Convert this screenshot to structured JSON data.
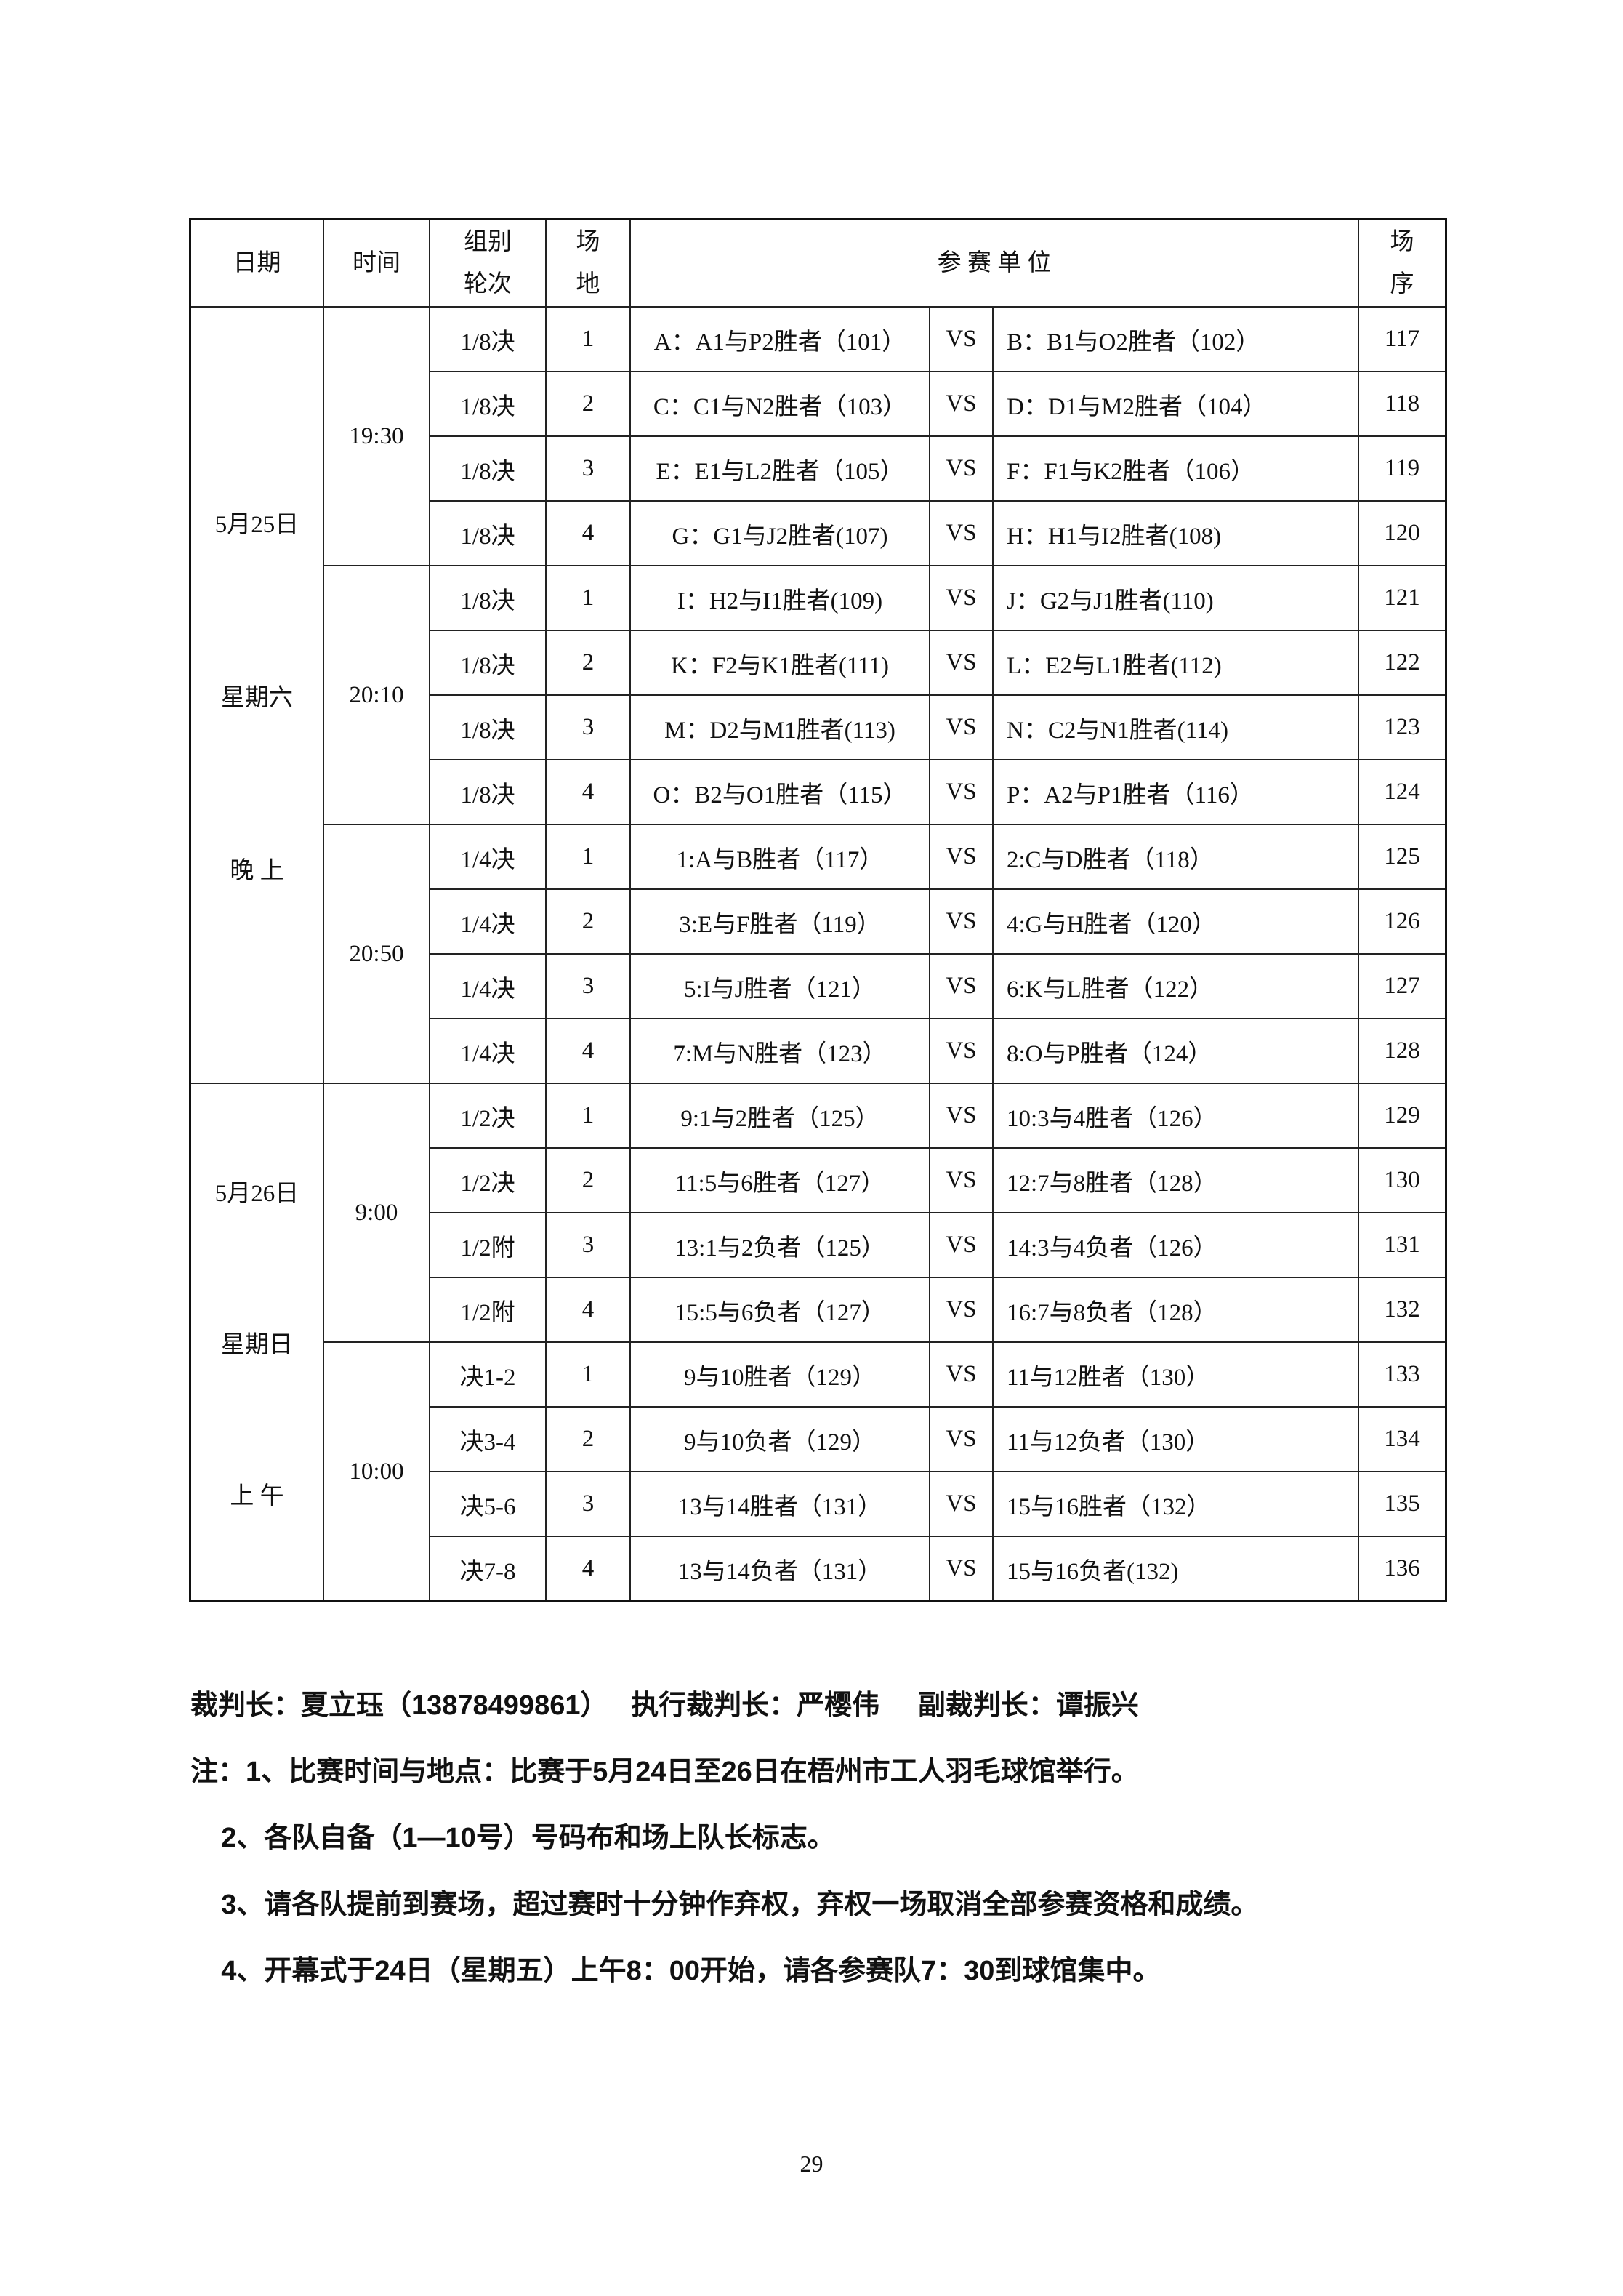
{
  "header": {
    "date": "日期",
    "time": "时间",
    "group_l1": "组别",
    "group_l2": "轮次",
    "court_l1": "场",
    "court_l2": "地",
    "teams": "参 赛 单 位",
    "order_l1": "场",
    "order_l2": "序"
  },
  "dates": [
    {
      "lines": [
        "5月25日",
        "星期六",
        "晚 上"
      ]
    },
    {
      "lines": [
        "5月26日",
        "星期日",
        "上 午"
      ]
    }
  ],
  "times": [
    "19:30",
    "20:10",
    "20:50",
    "9:00",
    "10:00"
  ],
  "rows": [
    {
      "round": "1/8决",
      "court": "1",
      "a": "A：A1与P2胜者（101）",
      "vs": "VS",
      "b": "B：B1与O2胜者（102）",
      "no": "117"
    },
    {
      "round": "1/8决",
      "court": "2",
      "a": "C：C1与N2胜者（103）",
      "vs": "VS",
      "b": "D：D1与M2胜者（104）",
      "no": "118"
    },
    {
      "round": "1/8决",
      "court": "3",
      "a": "E：E1与L2胜者（105）",
      "vs": "VS",
      "b": "F：F1与K2胜者（106）",
      "no": "119"
    },
    {
      "round": "1/8决",
      "court": "4",
      "a": "G：G1与J2胜者(107)",
      "vs": "VS",
      "b": "H：H1与I2胜者(108)",
      "no": "120"
    },
    {
      "round": "1/8决",
      "court": "1",
      "a": "I：H2与I1胜者(109)",
      "vs": "VS",
      "b": "J：G2与J1胜者(110)",
      "no": "121"
    },
    {
      "round": "1/8决",
      "court": "2",
      "a": "K：F2与K1胜者(111)",
      "vs": "VS",
      "b": "L：E2与L1胜者(112)",
      "no": "122"
    },
    {
      "round": "1/8决",
      "court": "3",
      "a": "M：D2与M1胜者(113)",
      "vs": "VS",
      "b": "N：C2与N1胜者(114)",
      "no": "123"
    },
    {
      "round": "1/8决",
      "court": "4",
      "a": "O：B2与O1胜者（115）",
      "vs": "VS",
      "b": "P：A2与P1胜者（116）",
      "no": "124"
    },
    {
      "round": "1/4决",
      "court": "1",
      "a": "1:A与B胜者（117）",
      "vs": "VS",
      "b": "2:C与D胜者（118）",
      "no": "125"
    },
    {
      "round": "1/4决",
      "court": "2",
      "a": "3:E与F胜者（119）",
      "vs": "VS",
      "b": "4:G与H胜者（120）",
      "no": "126"
    },
    {
      "round": "1/4决",
      "court": "3",
      "a": "5:I与J胜者（121）",
      "vs": "VS",
      "b": "6:K与L胜者（122）",
      "no": "127"
    },
    {
      "round": "1/4决",
      "court": "4",
      "a": "7:M与N胜者（123）",
      "vs": "VS",
      "b": "8:O与P胜者（124）",
      "no": "128"
    },
    {
      "round": "1/2决",
      "court": "1",
      "a": "9:1与2胜者（125）",
      "vs": "VS",
      "b": "10:3与4胜者（126）",
      "no": "129"
    },
    {
      "round": "1/2决",
      "court": "2",
      "a": "11:5与6胜者（127）",
      "vs": "VS",
      "b": "12:7与8胜者（128）",
      "no": "130"
    },
    {
      "round": "1/2附",
      "court": "3",
      "a": "13:1与2负者（125）",
      "vs": "VS",
      "b": "14:3与4负者（126）",
      "no": "131"
    },
    {
      "round": "1/2附",
      "court": "4",
      "a": "15:5与6负者（127）",
      "vs": "VS",
      "b": "16:7与8负者（128）",
      "no": "132"
    },
    {
      "round": "决1-2",
      "court": "1",
      "a": "9与10胜者（129）",
      "vs": "VS",
      "b": "11与12胜者（130）",
      "no": "133"
    },
    {
      "round": "决3-4",
      "court": "2",
      "a": "9与10负者（129）",
      "vs": "VS",
      "b": "11与12负者（130）",
      "no": "134"
    },
    {
      "round": "决5-6",
      "court": "3",
      "a": "13与14胜者（131）",
      "vs": "VS",
      "b": "15与16胜者（132）",
      "no": "135"
    },
    {
      "round": "决7-8",
      "court": "4",
      "a": "13与14负者（131）",
      "vs": "VS",
      "b": "15与16负者(132)",
      "no": "136"
    }
  ],
  "referees": "裁判长：夏立珏（13878499861）   执行裁判长：严樱伟     副裁判长：谭振兴",
  "notes": [
    "注：1、比赛时间与地点：比赛于5月24日至26日在梧州市工人羽毛球馆举行。",
    "    2、各队自备（1—10号）号码布和场上队长标志。",
    "    3、请各队提前到赛场，超过赛时十分钟作弃权，弃权一场取消全部参赛资格和成绩。",
    "    4、开幕式于24日（星期五）上午8：00开始，请各参赛队7：30到球馆集中。"
  ],
  "page_number": "29"
}
